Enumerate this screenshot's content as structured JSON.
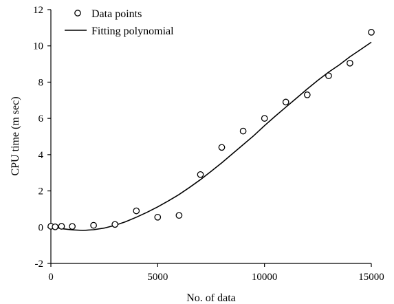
{
  "chart_data": {
    "type": "scatter",
    "xlabel": "No. of data",
    "ylabel": "CPU time (m sec)",
    "xlim": [
      0,
      15000
    ],
    "ylim": [
      -2,
      12
    ],
    "x_ticks": [
      0,
      5000,
      10000,
      15000
    ],
    "y_ticks": [
      -2,
      0,
      2,
      4,
      6,
      8,
      10,
      12
    ],
    "grid": false,
    "legend_position": "top-left",
    "legend": {
      "points_label": "Data points",
      "curve_label": "Fitting polynomial"
    },
    "series": [
      {
        "name": "Data points",
        "kind": "scatter",
        "marker": "open-circle",
        "color": "#000000",
        "x": [
          0,
          200,
          500,
          1000,
          2000,
          3000,
          4000,
          5000,
          6000,
          7000,
          8000,
          9000,
          10000,
          11000,
          12000,
          13000,
          14000,
          15000
        ],
        "y": [
          0.05,
          0.02,
          0.05,
          0.04,
          0.1,
          0.15,
          0.9,
          0.55,
          0.65,
          2.9,
          4.4,
          5.3,
          6.0,
          6.9,
          7.3,
          8.35,
          9.05,
          10.75
        ]
      },
      {
        "name": "Fitting polynomial",
        "kind": "line",
        "color": "#000000",
        "x": [
          0,
          500,
          1000,
          1500,
          2000,
          2500,
          3000,
          3500,
          4000,
          4500,
          5000,
          5500,
          6000,
          6500,
          7000,
          7500,
          8000,
          8500,
          9000,
          9500,
          10000,
          10500,
          11000,
          11500,
          12000,
          12500,
          13000,
          13500,
          14000,
          14500,
          15000
        ],
        "y": [
          0.05,
          -0.08,
          -0.15,
          -0.18,
          -0.14,
          -0.05,
          0.1,
          0.3,
          0.55,
          0.82,
          1.12,
          1.45,
          1.8,
          2.2,
          2.62,
          3.08,
          3.55,
          4.05,
          4.55,
          5.05,
          5.6,
          6.12,
          6.62,
          7.12,
          7.62,
          8.1,
          8.55,
          8.95,
          9.4,
          9.8,
          10.2
        ]
      }
    ]
  }
}
